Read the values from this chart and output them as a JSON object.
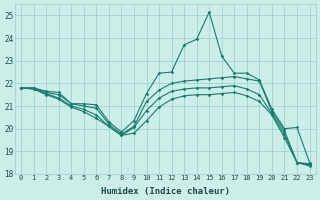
{
  "xlabel": "Humidex (Indice chaleur)",
  "bg_color": "#cceee8",
  "grid_color": "#99cccc",
  "line_color": "#1a7a6e",
  "xlim_min": -0.5,
  "xlim_max": 23.5,
  "ylim_min": 18,
  "ylim_max": 25.5,
  "yticks": [
    18,
    19,
    20,
    21,
    22,
    23,
    24,
    25
  ],
  "xticks": [
    0,
    1,
    2,
    3,
    4,
    5,
    6,
    7,
    8,
    9,
    10,
    11,
    12,
    13,
    14,
    15,
    16,
    17,
    18,
    19,
    20,
    21,
    22,
    23
  ],
  "series": [
    [
      21.8,
      21.8,
      21.65,
      21.6,
      21.1,
      21.1,
      21.05,
      20.3,
      19.85,
      20.35,
      21.55,
      22.45,
      22.5,
      23.7,
      23.95,
      25.15,
      23.2,
      22.45,
      22.45,
      22.15,
      20.85,
      20.0,
      20.05,
      18.5
    ],
    [
      21.8,
      21.8,
      21.6,
      21.5,
      21.1,
      21.0,
      20.9,
      20.2,
      19.75,
      20.1,
      21.2,
      21.7,
      22.0,
      22.1,
      22.15,
      22.2,
      22.25,
      22.3,
      22.2,
      22.1,
      20.75,
      19.9,
      18.5,
      18.45
    ],
    [
      21.8,
      21.75,
      21.55,
      21.35,
      21.0,
      20.85,
      20.6,
      20.1,
      19.7,
      20.05,
      20.8,
      21.35,
      21.65,
      21.75,
      21.8,
      21.8,
      21.85,
      21.9,
      21.75,
      21.5,
      20.65,
      19.75,
      18.5,
      18.4
    ],
    [
      21.8,
      21.75,
      21.5,
      21.3,
      20.95,
      20.75,
      20.45,
      20.1,
      19.7,
      19.8,
      20.35,
      20.95,
      21.3,
      21.45,
      21.5,
      21.5,
      21.55,
      21.6,
      21.45,
      21.2,
      20.6,
      19.6,
      18.5,
      18.35
    ]
  ]
}
